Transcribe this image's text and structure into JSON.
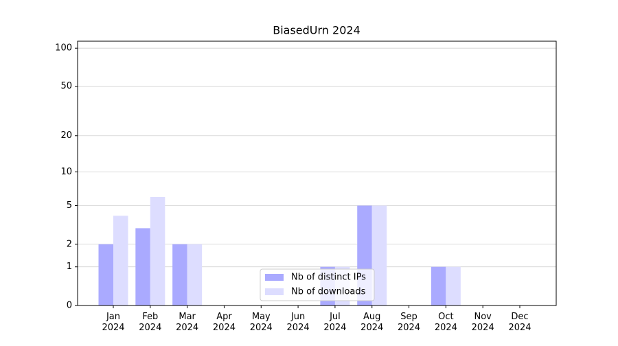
{
  "chart_data": {
    "type": "bar",
    "title": "BiasedUrn 2024",
    "categories": [
      "Jan 2024",
      "Feb 2024",
      "Mar 2024",
      "Apr 2024",
      "May 2024",
      "Jun 2024",
      "Jul 2024",
      "Aug 2024",
      "Sep 2024",
      "Oct 2024",
      "Nov 2024",
      "Dec 2024"
    ],
    "series": [
      {
        "name": "Nb of distinct IPs",
        "color": "#aaaaff",
        "values": [
          2,
          3,
          2,
          0,
          0,
          0,
          1,
          5,
          0,
          1,
          0,
          0
        ]
      },
      {
        "name": "Nb of downloads",
        "color": "#ddddff",
        "values": [
          4,
          6,
          2,
          0,
          0,
          0,
          1,
          5,
          0,
          1,
          0,
          0
        ]
      }
    ],
    "yscale": "log1p",
    "ylim": [
      0,
      113.5
    ],
    "yticks": [
      0,
      1,
      2,
      5,
      10,
      20,
      50,
      100
    ],
    "grid": true,
    "legend": "lower center"
  }
}
